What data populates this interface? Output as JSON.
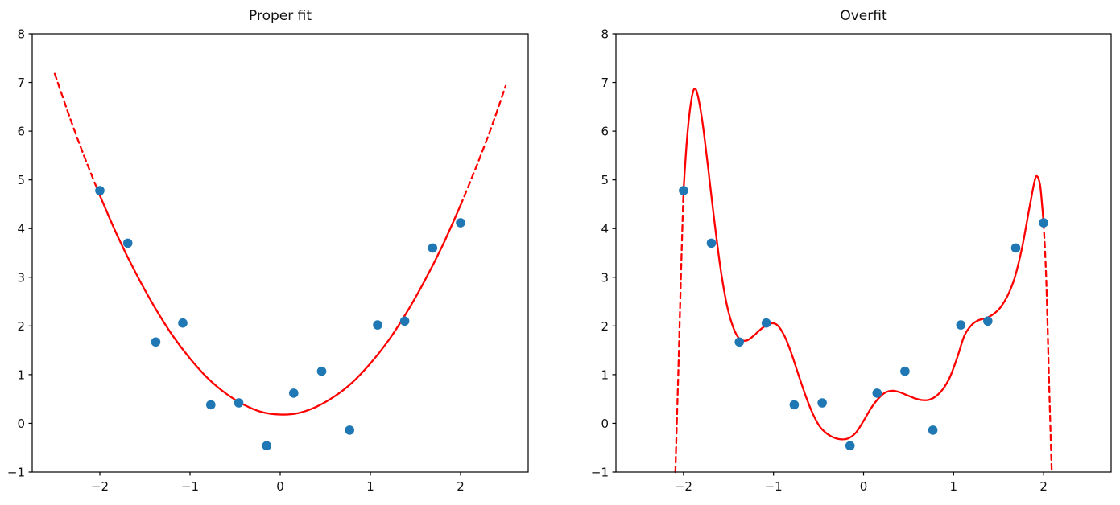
{
  "page": {
    "background": "#ffffff"
  },
  "chart_data": [
    {
      "type": "scatter",
      "title": "Proper fit",
      "xlabel": "",
      "ylabel": "",
      "xlim": [
        -2.75,
        2.75
      ],
      "ylim": [
        -1,
        8
      ],
      "xticks": [
        -2,
        -1,
        0,
        1,
        2
      ],
      "yticks": [
        -1,
        0,
        1,
        2,
        3,
        4,
        5,
        6,
        7,
        8
      ],
      "grid": false,
      "legend": null,
      "point_color": "#1f77b4",
      "line_color": "#ff0000",
      "scatter": [
        [
          -2.0,
          4.78
        ],
        [
          -1.69,
          3.7
        ],
        [
          -1.38,
          1.67
        ],
        [
          -1.08,
          2.06
        ],
        [
          -0.77,
          0.38
        ],
        [
          -0.46,
          0.42
        ],
        [
          -0.15,
          -0.46
        ],
        [
          0.15,
          0.62
        ],
        [
          0.46,
          1.07
        ],
        [
          0.77,
          -0.14
        ],
        [
          1.08,
          2.02
        ],
        [
          1.38,
          2.1
        ],
        [
          1.69,
          3.6
        ],
        [
          2.0,
          4.12
        ]
      ],
      "fit": {
        "model": "polynomial",
        "degree": 2,
        "description": "quadratic fit, solid inside data range, dashed extrapolation",
        "approx_formula": "y = 1.10x^2 - 0.05x + 0.18"
      },
      "curve_segments": [
        {
          "style": "dashed",
          "points": [
            [
              -2.5,
              7.18
            ],
            [
              -2.35,
              6.37
            ],
            [
              -2.2,
              5.61
            ],
            [
              -2.1,
              5.14
            ],
            [
              -2.0,
              4.68
            ]
          ]
        },
        {
          "style": "solid",
          "points": [
            [
              -2.0,
              4.68
            ],
            [
              -1.8,
              3.83
            ],
            [
              -1.6,
              3.08
            ],
            [
              -1.4,
              2.41
            ],
            [
              -1.2,
              1.82
            ],
            [
              -1.0,
              1.33
            ],
            [
              -0.8,
              0.92
            ],
            [
              -0.6,
              0.61
            ],
            [
              -0.4,
              0.38
            ],
            [
              -0.2,
              0.23
            ],
            [
              0,
              0.18
            ],
            [
              0.2,
              0.21
            ],
            [
              0.4,
              0.34
            ],
            [
              0.6,
              0.55
            ],
            [
              0.8,
              0.84
            ],
            [
              1.0,
              1.23
            ],
            [
              1.2,
              1.7
            ],
            [
              1.4,
              2.27
            ],
            [
              1.6,
              2.92
            ],
            [
              1.8,
              3.65
            ],
            [
              2.0,
              4.48
            ]
          ]
        },
        {
          "style": "dashed",
          "points": [
            [
              2.0,
              4.48
            ],
            [
              2.1,
              4.93
            ],
            [
              2.2,
              5.39
            ],
            [
              2.35,
              6.12
            ],
            [
              2.5,
              6.93
            ]
          ]
        }
      ]
    },
    {
      "type": "scatter",
      "title": "Overfit",
      "xlabel": "",
      "ylabel": "",
      "xlim": [
        -2.75,
        2.75
      ],
      "ylim": [
        -1,
        8
      ],
      "xticks": [
        -2,
        -1,
        0,
        1,
        2
      ],
      "yticks": [
        -1,
        0,
        1,
        2,
        3,
        4,
        5,
        6,
        7,
        8
      ],
      "grid": false,
      "legend": null,
      "point_color": "#1f77b4",
      "line_color": "#ff0000",
      "scatter": [
        [
          -2.0,
          4.78
        ],
        [
          -1.69,
          3.7
        ],
        [
          -1.38,
          1.67
        ],
        [
          -1.08,
          2.06
        ],
        [
          -0.77,
          0.38
        ],
        [
          -0.46,
          0.42
        ],
        [
          -0.15,
          -0.46
        ],
        [
          0.15,
          0.62
        ],
        [
          0.46,
          1.07
        ],
        [
          0.77,
          -0.14
        ],
        [
          1.08,
          2.02
        ],
        [
          1.38,
          2.1
        ],
        [
          1.69,
          3.6
        ],
        [
          2.0,
          4.12
        ]
      ],
      "fit": {
        "model": "polynomial",
        "degree": "high",
        "description": "high-degree polynomial overfitting noise; diverges outside data range (dashed)",
        "local_max_left": [
          -1.88,
          6.87
        ],
        "local_min_center": [
          -0.24,
          -0.33
        ],
        "local_max_right": [
          1.93,
          5.07
        ]
      },
      "curve_segments": [
        {
          "style": "dashed",
          "points": [
            [
              -2.09,
              -1.0
            ],
            [
              -2.06,
              0.9
            ],
            [
              -2.03,
              2.9
            ],
            [
              -2.0,
              4.78
            ]
          ]
        },
        {
          "style": "solid",
          "points": [
            [
              -2.0,
              4.78
            ],
            [
              -1.96,
              5.85
            ],
            [
              -1.92,
              6.55
            ],
            [
              -1.88,
              6.87
            ],
            [
              -1.84,
              6.72
            ],
            [
              -1.79,
              6.2
            ],
            [
              -1.73,
              5.3
            ],
            [
              -1.66,
              4.2
            ],
            [
              -1.59,
              3.2
            ],
            [
              -1.52,
              2.45
            ],
            [
              -1.45,
              1.98
            ],
            [
              -1.38,
              1.74
            ],
            [
              -1.3,
              1.7
            ],
            [
              -1.22,
              1.8
            ],
            [
              -1.13,
              1.95
            ],
            [
              -1.04,
              2.05
            ],
            [
              -0.96,
              2.02
            ],
            [
              -0.88,
              1.8
            ],
            [
              -0.8,
              1.43
            ],
            [
              -0.72,
              0.98
            ],
            [
              -0.64,
              0.55
            ],
            [
              -0.56,
              0.18
            ],
            [
              -0.48,
              -0.08
            ],
            [
              -0.4,
              -0.22
            ],
            [
              -0.32,
              -0.3
            ],
            [
              -0.24,
              -0.33
            ],
            [
              -0.16,
              -0.3
            ],
            [
              -0.08,
              -0.18
            ],
            [
              0.0,
              0.05
            ],
            [
              0.08,
              0.3
            ],
            [
              0.16,
              0.5
            ],
            [
              0.24,
              0.63
            ],
            [
              0.32,
              0.67
            ],
            [
              0.4,
              0.64
            ],
            [
              0.48,
              0.58
            ],
            [
              0.56,
              0.52
            ],
            [
              0.64,
              0.48
            ],
            [
              0.72,
              0.48
            ],
            [
              0.8,
              0.55
            ],
            [
              0.88,
              0.7
            ],
            [
              0.96,
              0.95
            ],
            [
              1.04,
              1.35
            ],
            [
              1.12,
              1.8
            ],
            [
              1.2,
              2.02
            ],
            [
              1.28,
              2.12
            ],
            [
              1.36,
              2.16
            ],
            [
              1.44,
              2.24
            ],
            [
              1.52,
              2.38
            ],
            [
              1.6,
              2.62
            ],
            [
              1.68,
              3.0
            ],
            [
              1.76,
              3.6
            ],
            [
              1.84,
              4.4
            ],
            [
              1.9,
              4.98
            ],
            [
              1.93,
              5.07
            ],
            [
              1.96,
              4.9
            ],
            [
              1.98,
              4.55
            ],
            [
              2.0,
              4.12
            ]
          ]
        },
        {
          "style": "dashed",
          "points": [
            [
              2.0,
              4.12
            ],
            [
              2.03,
              2.9
            ],
            [
              2.06,
              0.9
            ],
            [
              2.09,
              -1.0
            ]
          ]
        }
      ]
    }
  ]
}
